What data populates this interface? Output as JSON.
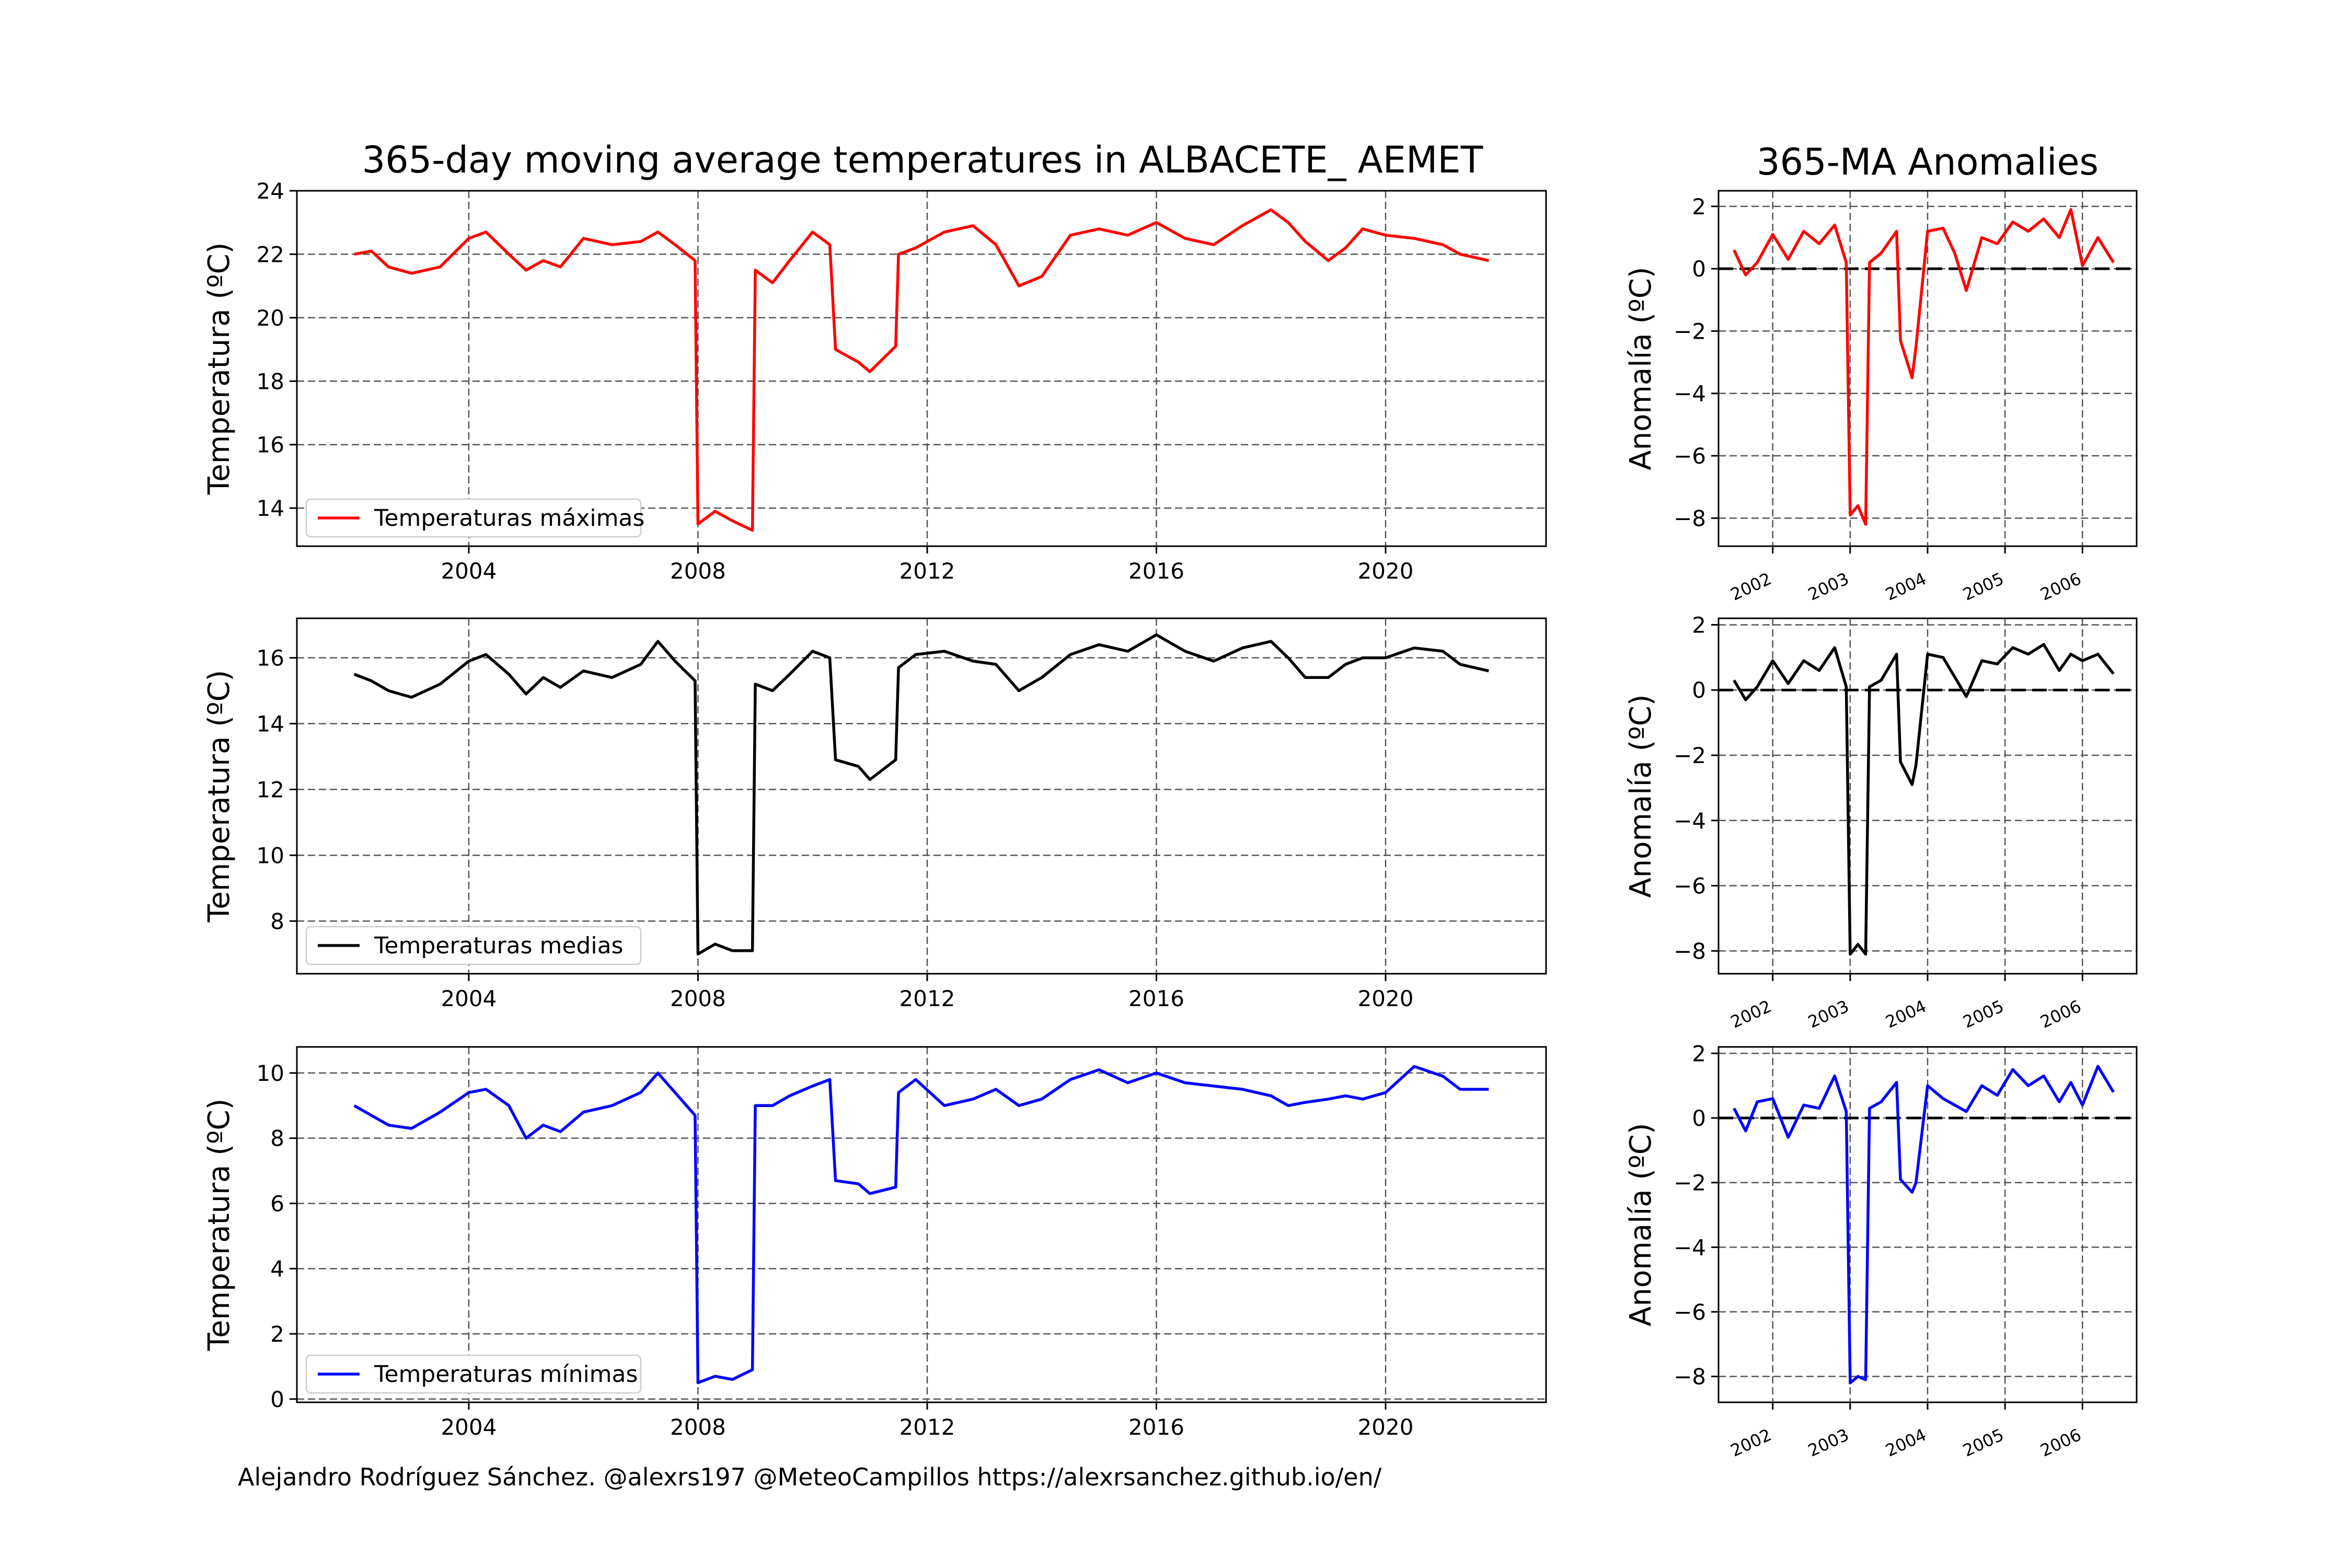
{
  "figure": {
    "main_title": "365-day moving average temperatures in ALBACETE_ AEMET",
    "anomaly_title": "365-MA Anomalies",
    "credit": "Alejandro Rodríguez Sánchez. @alexrs197 @MeteoCampillos   https://alexrsanchez.github.io/en/"
  },
  "chart_data": [
    {
      "type": "line",
      "name": "Temperaturas máximas",
      "ylabel": "Temperatura (ºC)",
      "legend": "lower-left",
      "grid": true,
      "color": "#ff0000",
      "xlim": [
        2001.0,
        2022.8
      ],
      "ylim": [
        12.8,
        24.0
      ],
      "xticks": [
        2004,
        2008,
        2012,
        2016,
        2020
      ],
      "xtick_labels": [
        "2004",
        "2008",
        "2012",
        "2016",
        "2020"
      ],
      "yticks": [
        14,
        16,
        18,
        20,
        22,
        24
      ],
      "ytick_labels": [
        "14",
        "16",
        "18",
        "20",
        "22",
        "24"
      ],
      "x": [
        2002.0,
        2002.3,
        2002.6,
        2003.0,
        2003.5,
        2004.0,
        2004.3,
        2004.7,
        2005.0,
        2005.3,
        2005.6,
        2006.0,
        2006.5,
        2007.0,
        2007.3,
        2007.6,
        2007.95,
        2008.0,
        2008.3,
        2008.6,
        2008.95,
        2009.0,
        2009.3,
        2009.6,
        2010.0,
        2010.3,
        2010.4,
        2010.8,
        2011.0,
        2011.45,
        2011.5,
        2011.8,
        2012.3,
        2012.8,
        2013.2,
        2013.6,
        2014.0,
        2014.5,
        2015.0,
        2015.5,
        2016.0,
        2016.5,
        2017.0,
        2017.5,
        2018.0,
        2018.3,
        2018.6,
        2019.0,
        2019.3,
        2019.6,
        2020.0,
        2020.5,
        2021.0,
        2021.3,
        2021.8
      ],
      "y": [
        22.0,
        22.1,
        21.6,
        21.4,
        21.6,
        22.5,
        22.7,
        22.0,
        21.5,
        21.8,
        21.6,
        22.5,
        22.3,
        22.4,
        22.7,
        22.3,
        21.8,
        13.5,
        13.9,
        13.6,
        13.3,
        21.5,
        21.1,
        21.8,
        22.7,
        22.3,
        19.0,
        18.6,
        18.3,
        19.1,
        22.0,
        22.2,
        22.7,
        22.9,
        22.3,
        21.0,
        21.3,
        22.6,
        22.8,
        22.6,
        23.0,
        22.5,
        22.3,
        22.9,
        23.4,
        23.0,
        22.4,
        21.8,
        22.2,
        22.8,
        22.6,
        22.5,
        22.3,
        22.0,
        21.8
      ]
    },
    {
      "type": "line",
      "name": "Temperaturas medias",
      "ylabel": "Temperatura (ºC)",
      "legend": "lower-left",
      "grid": true,
      "color": "#000000",
      "xlim": [
        2001.0,
        2022.8
      ],
      "ylim": [
        6.4,
        17.2
      ],
      "xticks": [
        2004,
        2008,
        2012,
        2016,
        2020
      ],
      "xtick_labels": [
        "2004",
        "2008",
        "2012",
        "2016",
        "2020"
      ],
      "yticks": [
        8,
        10,
        12,
        14,
        16
      ],
      "ytick_labels": [
        "8",
        "10",
        "12",
        "14",
        "16"
      ],
      "x": [
        2002.0,
        2002.3,
        2002.6,
        2003.0,
        2003.5,
        2004.0,
        2004.3,
        2004.7,
        2005.0,
        2005.3,
        2005.6,
        2006.0,
        2006.5,
        2007.0,
        2007.3,
        2007.6,
        2007.95,
        2008.0,
        2008.3,
        2008.6,
        2008.95,
        2009.0,
        2009.3,
        2009.6,
        2010.0,
        2010.3,
        2010.4,
        2010.8,
        2011.0,
        2011.45,
        2011.5,
        2011.8,
        2012.3,
        2012.8,
        2013.2,
        2013.6,
        2014.0,
        2014.5,
        2015.0,
        2015.5,
        2016.0,
        2016.5,
        2017.0,
        2017.5,
        2018.0,
        2018.3,
        2018.6,
        2019.0,
        2019.3,
        2019.6,
        2020.0,
        2020.5,
        2021.0,
        2021.3,
        2021.8
      ],
      "y": [
        15.5,
        15.3,
        15.0,
        14.8,
        15.2,
        15.9,
        16.1,
        15.5,
        14.9,
        15.4,
        15.1,
        15.6,
        15.4,
        15.8,
        16.5,
        15.9,
        15.3,
        7.0,
        7.3,
        7.1,
        7.1,
        15.2,
        15.0,
        15.5,
        16.2,
        16.0,
        12.9,
        12.7,
        12.3,
        12.9,
        15.7,
        16.1,
        16.2,
        15.9,
        15.8,
        15.0,
        15.4,
        16.1,
        16.4,
        16.2,
        16.7,
        16.2,
        15.9,
        16.3,
        16.5,
        16.0,
        15.4,
        15.4,
        15.8,
        16.0,
        16.0,
        16.3,
        16.2,
        15.8,
        15.6
      ]
    },
    {
      "type": "line",
      "name": "Temperaturas mínimas",
      "ylabel": "Temperatura (ºC)",
      "legend": "lower-left",
      "grid": true,
      "color": "#0000ff",
      "xlim": [
        2001.0,
        2022.8
      ],
      "ylim": [
        -0.1,
        10.8
      ],
      "xticks": [
        2004,
        2008,
        2012,
        2016,
        2020
      ],
      "xtick_labels": [
        "2004",
        "2008",
        "2012",
        "2016",
        "2020"
      ],
      "yticks": [
        0,
        2,
        4,
        6,
        8,
        10
      ],
      "ytick_labels": [
        "0",
        "2",
        "4",
        "6",
        "8",
        "10"
      ],
      "x": [
        2002.0,
        2002.3,
        2002.6,
        2003.0,
        2003.5,
        2004.0,
        2004.3,
        2004.7,
        2005.0,
        2005.3,
        2005.6,
        2006.0,
        2006.5,
        2007.0,
        2007.3,
        2007.6,
        2007.95,
        2008.0,
        2008.3,
        2008.6,
        2008.95,
        2009.0,
        2009.3,
        2009.6,
        2010.0,
        2010.3,
        2010.4,
        2010.8,
        2011.0,
        2011.45,
        2011.5,
        2011.8,
        2012.3,
        2012.8,
        2013.2,
        2013.6,
        2014.0,
        2014.5,
        2015.0,
        2015.5,
        2016.0,
        2016.5,
        2017.0,
        2017.5,
        2018.0,
        2018.3,
        2018.6,
        2019.0,
        2019.3,
        2019.6,
        2020.0,
        2020.5,
        2021.0,
        2021.3,
        2021.8
      ],
      "y": [
        9.0,
        8.7,
        8.4,
        8.3,
        8.8,
        9.4,
        9.5,
        9.0,
        8.0,
        8.4,
        8.2,
        8.8,
        9.0,
        9.4,
        10.0,
        9.4,
        8.7,
        0.5,
        0.7,
        0.6,
        0.9,
        9.0,
        9.0,
        9.3,
        9.6,
        9.8,
        6.7,
        6.6,
        6.3,
        6.5,
        9.4,
        9.8,
        9.0,
        9.2,
        9.5,
        9.0,
        9.2,
        9.8,
        10.1,
        9.7,
        10.0,
        9.7,
        9.6,
        9.5,
        9.3,
        9.0,
        9.1,
        9.2,
        9.3,
        9.2,
        9.4,
        10.2,
        9.9,
        9.5,
        9.5
      ]
    },
    {
      "type": "line",
      "title": "365-MA Anomalies",
      "ylabel": "Anomalía (ºC)",
      "grid": true,
      "color": "#ff0000",
      "zero_line": 0,
      "xlim": [
        2001.3,
        2006.7
      ],
      "ylim": [
        -8.9,
        2.5
      ],
      "xticks": [
        2002,
        2003,
        2004,
        2005,
        2006
      ],
      "xtick_labels": [
        "2002",
        "2003",
        "2004",
        "2005",
        "2006"
      ],
      "yticks": [
        -8,
        -6,
        -4,
        -2,
        0,
        2
      ],
      "ytick_labels": [
        "−8",
        "−6",
        "−4",
        "−2",
        "0",
        "2"
      ],
      "x": [
        2001.5,
        2001.65,
        2001.8,
        2002.0,
        2002.2,
        2002.4,
        2002.6,
        2002.8,
        2002.95,
        2003.0,
        2003.1,
        2003.2,
        2003.25,
        2003.4,
        2003.6,
        2003.65,
        2003.8,
        2003.85,
        2004.0,
        2004.2,
        2004.35,
        2004.5,
        2004.7,
        2004.9,
        2005.1,
        2005.3,
        2005.5,
        2005.7,
        2005.85,
        2006.0,
        2006.2,
        2006.4
      ],
      "y": [
        0.6,
        -0.2,
        0.2,
        1.1,
        0.3,
        1.2,
        0.8,
        1.4,
        0.2,
        -7.9,
        -7.6,
        -8.2,
        0.2,
        0.5,
        1.2,
        -2.3,
        -3.5,
        -2.5,
        1.2,
        1.3,
        0.5,
        -0.7,
        1.0,
        0.8,
        1.5,
        1.2,
        1.6,
        1.0,
        1.9,
        0.1,
        1.0,
        0.2
      ]
    },
    {
      "type": "line",
      "ylabel": "Anomalía (ºC)",
      "grid": true,
      "color": "#000000",
      "zero_line": 0,
      "xlim": [
        2001.3,
        2006.7
      ],
      "ylim": [
        -8.7,
        2.2
      ],
      "xticks": [
        2002,
        2003,
        2004,
        2005,
        2006
      ],
      "xtick_labels": [
        "2002",
        "2003",
        "2004",
        "2005",
        "2006"
      ],
      "yticks": [
        -8,
        -6,
        -4,
        -2,
        0,
        2
      ],
      "ytick_labels": [
        "−8",
        "−6",
        "−4",
        "−2",
        "0",
        "2"
      ],
      "x": [
        2001.5,
        2001.65,
        2001.8,
        2002.0,
        2002.2,
        2002.4,
        2002.6,
        2002.8,
        2002.95,
        2003.0,
        2003.1,
        2003.2,
        2003.25,
        2003.4,
        2003.6,
        2003.65,
        2003.8,
        2003.85,
        2004.0,
        2004.2,
        2004.35,
        2004.5,
        2004.7,
        2004.9,
        2005.1,
        2005.3,
        2005.5,
        2005.7,
        2005.85,
        2006.0,
        2006.2,
        2006.4
      ],
      "y": [
        0.3,
        -0.3,
        0.1,
        0.9,
        0.2,
        0.9,
        0.6,
        1.3,
        0.1,
        -8.1,
        -7.8,
        -8.1,
        0.1,
        0.3,
        1.1,
        -2.2,
        -2.9,
        -2.3,
        1.1,
        1.0,
        0.4,
        -0.2,
        0.9,
        0.8,
        1.3,
        1.1,
        1.4,
        0.6,
        1.1,
        0.9,
        1.1,
        0.5
      ]
    },
    {
      "type": "line",
      "ylabel": "Anomalía (ºC)",
      "grid": true,
      "color": "#0000ff",
      "zero_line": 0,
      "xlim": [
        2001.3,
        2006.7
      ],
      "ylim": [
        -8.8,
        2.2
      ],
      "xticks": [
        2002,
        2003,
        2004,
        2005,
        2006
      ],
      "xtick_labels": [
        "2002",
        "2003",
        "2004",
        "2005",
        "2006"
      ],
      "yticks": [
        -8,
        -6,
        -4,
        -2,
        0,
        2
      ],
      "ytick_labels": [
        "−8",
        "−6",
        "−4",
        "−2",
        "0",
        "2"
      ],
      "x": [
        2001.5,
        2001.65,
        2001.8,
        2002.0,
        2002.2,
        2002.4,
        2002.6,
        2002.8,
        2002.95,
        2003.0,
        2003.1,
        2003.2,
        2003.25,
        2003.4,
        2003.6,
        2003.65,
        2003.8,
        2003.85,
        2004.0,
        2004.2,
        2004.35,
        2004.5,
        2004.7,
        2004.9,
        2005.1,
        2005.3,
        2005.5,
        2005.7,
        2005.85,
        2006.0,
        2006.2,
        2006.4
      ],
      "y": [
        0.3,
        -0.4,
        0.5,
        0.6,
        -0.6,
        0.4,
        0.3,
        1.3,
        0.2,
        -8.2,
        -8.0,
        -8.1,
        0.3,
        0.5,
        1.1,
        -1.9,
        -2.3,
        -2.0,
        1.0,
        0.6,
        0.4,
        0.2,
        1.0,
        0.7,
        1.5,
        1.0,
        1.3,
        0.5,
        1.1,
        0.4,
        1.6,
        0.8
      ]
    }
  ]
}
